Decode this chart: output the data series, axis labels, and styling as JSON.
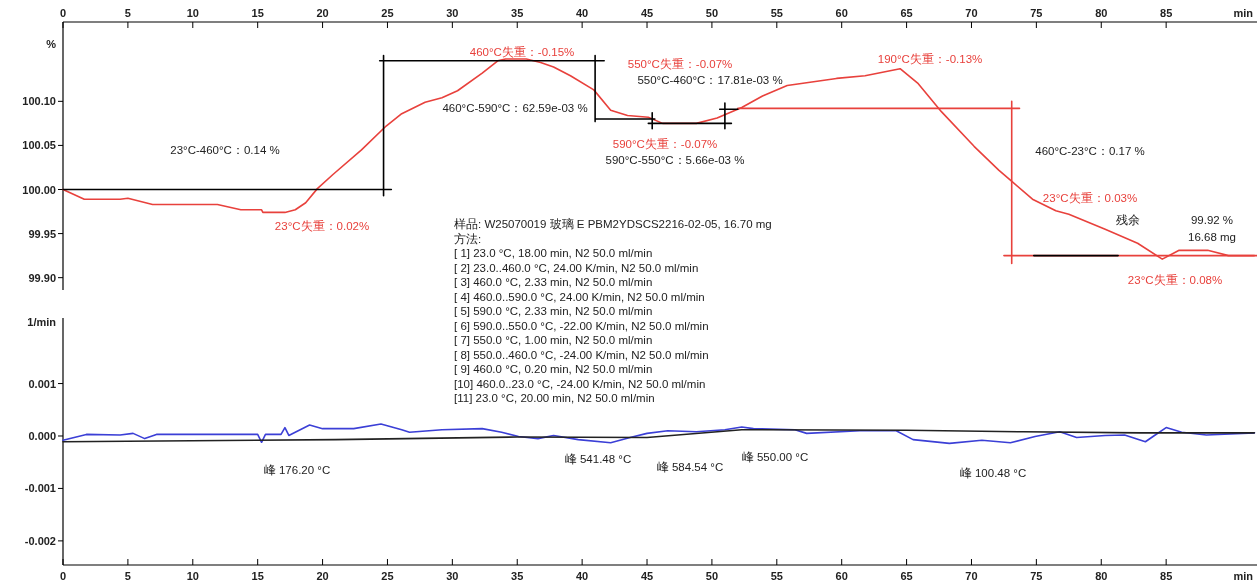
{
  "chart_data": [
    {
      "type": "line",
      "xlabel": "min",
      "ylabel": "%",
      "xlim": [
        0,
        92
      ],
      "ylim": [
        99.886,
        100.19
      ],
      "xticks": [
        0,
        5,
        10,
        15,
        20,
        25,
        30,
        35,
        40,
        45,
        50,
        55,
        60,
        65,
        70,
        75,
        80,
        85
      ],
      "yticks": [
        {
          "value": 99.9,
          "label": "99.90"
        },
        {
          "value": 99.95,
          "label": "99.95"
        },
        {
          "value": 100,
          "label": "100.00"
        },
        {
          "value": 100.05,
          "label": "100.05"
        },
        {
          "value": 100.1,
          "label": "100.10"
        }
      ],
      "series": [
        {
          "color": "#e8413c",
          "x": [
            0,
            1.64,
            4.4,
            5.0,
            6.9,
            11.9,
            13.7,
            15.3,
            15.4,
            17.1,
            17.9,
            18.7,
            19.6,
            20.8,
            23.0,
            24.9,
            26.1,
            27.9,
            29.2,
            30.4,
            32.3,
            33.5,
            34.1,
            35.7,
            36.8,
            37.8,
            39.1,
            40.9,
            42.2,
            43.5,
            45.1,
            46.2,
            48.8,
            50.4,
            52.3,
            53.9,
            55.8,
            57.7,
            59.6,
            61.8,
            64.5,
            65.9,
            67.7,
            70.2,
            72.1,
            73.2,
            74.7,
            76.5,
            77.5,
            80.3,
            82.8,
            84.7,
            86.0,
            88.2,
            89.8,
            91.8
          ],
          "values": [
            100.0,
            99.989,
            99.989,
            99.99,
            99.983,
            99.983,
            99.977,
            99.977,
            99.974,
            99.974,
            99.977,
            99.985,
            100.001,
            100.017,
            100.045,
            100.072,
            100.086,
            100.099,
            100.104,
            100.112,
            100.132,
            100.146,
            100.148,
            100.148,
            100.144,
            100.139,
            100.129,
            100.113,
            100.09,
            100.084,
            100.082,
            100.075,
            100.075,
            100.081,
            100.093,
            100.106,
            100.118,
            100.122,
            100.126,
            100.129,
            100.137,
            100.12,
            100.088,
            100.049,
            100.022,
            100.008,
            99.989,
            99.976,
            99.972,
            99.955,
            99.939,
            99.921,
            99.931,
            99.931,
            99.925,
            99.925
          ]
        },
        {
          "color": "#e8413c",
          "x": [
            52.0,
            73.7,
            null,
            73.1,
            73.1,
            null,
            72.5,
            92
          ],
          "values": [
            100.092,
            100.092,
            null,
            100.1,
            99.916,
            null,
            99.925,
            99.925
          ]
        },
        {
          "color": "#000000",
          "x": [
            0,
            25.3,
            null,
            24.7,
            24.7,
            null,
            24.4,
            41.7,
            null,
            41.0,
            41.0,
            null,
            41.0,
            45.6,
            null,
            45.4,
            45.4,
            null,
            45.1,
            51.5,
            null,
            51.0,
            51.0,
            null,
            50.6,
            52.0,
            null,
            74.8,
            81.3
          ],
          "values": [
            100.0,
            100.0,
            null,
            99.993,
            100.152,
            null,
            100.146,
            100.146,
            null,
            100.152,
            100.077,
            null,
            100.08,
            100.08,
            null,
            100.087,
            100.069,
            null,
            100.075,
            100.075,
            null,
            100.098,
            100.069,
            null,
            100.091,
            100.091,
            null,
            99.925,
            99.925
          ]
        }
      ],
      "annotations": [
        "23°C-460°C：0.14 %",
        "460°C-590°C：62.59e-03 %",
        "460°C失重：-0.15%",
        "550°C失重：-0.07%",
        "550°C-460°C：17.81e-03 %",
        "590°C失重：-0.07%",
        "590°C-550°C：5.66e-03 %",
        "190°C失重：-0.13%",
        "460°C-23°C：0.17 %",
        "23°C失重：0.03%",
        "23°C失重：0.02%",
        "残余",
        "99.92 %",
        "16.68 mg",
        "23°C失重：0.08%",
        "样品: W25070019 玻璃 E PBM2YDSCS2216-02-05, 16.70 mg\n方法:\n[ 1] 23.0 °C, 18.00 min, N2 50.0 ml/min\n[ 2] 23.0..460.0 °C, 24.00 K/min, N2 50.0 ml/min\n[ 3] 460.0 °C, 2.33 min, N2 50.0 ml/min\n[ 4] 460.0..590.0 °C, 24.00 K/min, N2 50.0 ml/min\n[ 5] 590.0 °C, 2.33 min, N2 50.0 ml/min\n[ 6] 590.0..550.0 °C, -22.00 K/min, N2 50.0 ml/min\n[ 7] 550.0 °C, 1.00 min, N2 50.0 ml/min\n[ 8] 550.0..460.0 °C, -24.00 K/min, N2 50.0 ml/min\n[ 9] 460.0 °C, 0.20 min, N2 50.0 ml/min\n[10] 460.0..23.0 °C, -24.00 K/min, N2 50.0 ml/min\n[11] 23.0 °C, 20.00 min, N2 50.0 ml/min"
      ]
    },
    {
      "type": "line",
      "xlabel": "min",
      "ylabel": "1/min",
      "xlim": [
        0,
        92
      ],
      "ylim": [
        -0.00246,
        0.00225
      ],
      "xticks": [
        0,
        5,
        10,
        15,
        20,
        25,
        30,
        35,
        40,
        45,
        50,
        55,
        60,
        65,
        70,
        75,
        80,
        85
      ],
      "yticks": [
        {
          "value": -0.002,
          "label": "-0.002"
        },
        {
          "value": -0.001,
          "label": "-0.001"
        },
        {
          "value": 0,
          "label": "0.000"
        },
        {
          "value": 0.001,
          "label": "0.001"
        }
      ],
      "series": [
        {
          "color": "#3b3fd6",
          "x": [
            0,
            1.8,
            4.4,
            5.4,
            6.3,
            7.2,
            13.7,
            15.0,
            15.3,
            15.6,
            16.8,
            17.1,
            17.4,
            19.0,
            20.0,
            22.4,
            24.5,
            26.1,
            26.7,
            29.2,
            32.3,
            33.8,
            35.1,
            36.6,
            37.8,
            39.7,
            42.2,
            43.7,
            45.0,
            46.6,
            48.8,
            51.0,
            52.3,
            53.2,
            56.4,
            57.3,
            61.4,
            64.2,
            65.5,
            68.3,
            70.8,
            73.0,
            74.9,
            76.8,
            78.1,
            80.3,
            81.8,
            83.4,
            84.1,
            85.0,
            86.2,
            88.1,
            91.8
          ],
          "values": [
            -8e-05,
            3e-05,
            2e-05,
            5e-05,
            -5e-05,
            3e-05,
            3e-05,
            3e-05,
            -0.00012,
            3e-05,
            3e-05,
            0.00016,
            1e-05,
            0.00021,
            0.00014,
            0.00014,
            0.00023,
            0.00012,
            7e-05,
            0.00012,
            0.00014,
            7e-05,
            -1e-05,
            -5e-05,
            1e-05,
            -7e-05,
            -0.00013,
            -3e-05,
            5e-05,
            0.0001,
            8e-05,
            0.00012,
            0.00017,
            0.00014,
            0.00012,
            5e-05,
            0.0001,
            0.0001,
            -7e-05,
            -0.00014,
            -8e-05,
            -0.00013,
            -1e-05,
            8e-05,
            -3e-05,
            1e-05,
            2e-05,
            -0.00011,
            1e-05,
            0.00016,
            7e-05,
            2e-05,
            6e-05
          ]
        },
        {
          "color": "#222222",
          "x": [
            0,
            21,
            35,
            45,
            52.3,
            65,
            74,
            83,
            91.8
          ],
          "values": [
            -0.00011,
            -7e-05,
            -2e-05,
            -3e-05,
            0.00012,
            0.00011,
            8e-05,
            6e-05,
            6e-05
          ]
        }
      ],
      "annotations": [
        "峰   176.20 °C",
        "峰   541.48 °C",
        "峰   584.54 °C",
        "峰   550.00 °C",
        "峰   100.48 °C"
      ]
    }
  ]
}
